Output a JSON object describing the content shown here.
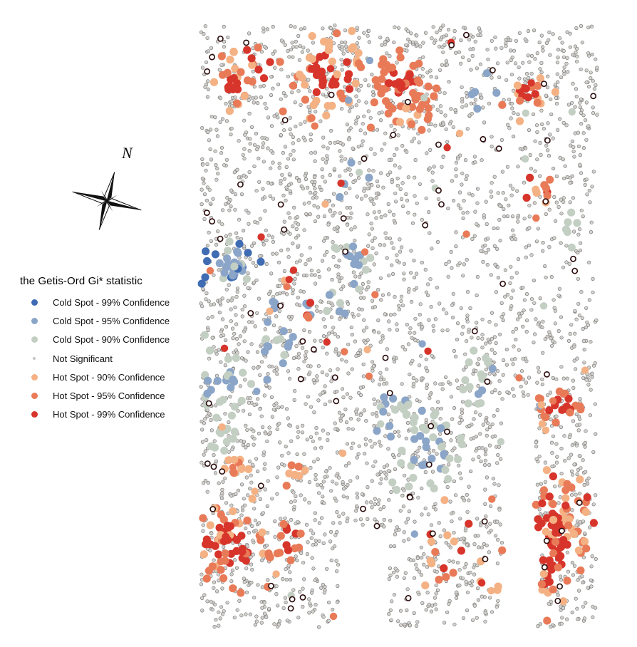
{
  "legend": {
    "title": "the Getis-Ord Gi* statistic",
    "items": [
      {
        "key": "cold99",
        "label": "Cold Spot - 99% Confidence",
        "color": "#3f6cb3"
      },
      {
        "key": "cold95",
        "label": "Cold Spot - 95% Confidence",
        "color": "#8aa5c8"
      },
      {
        "key": "cold90",
        "label": "Cold Spot - 90% Confidence",
        "color": "#c3cfc3"
      },
      {
        "key": "ns",
        "label": "Not Significant",
        "color": "#c8c6c3"
      },
      {
        "key": "hot90",
        "label": "Hot Spot - 90% Confidence",
        "color": "#f4b184"
      },
      {
        "key": "hot95",
        "label": "Hot Spot - 95% Confidence",
        "color": "#e97a58"
      },
      {
        "key": "hot99",
        "label": "Hot Spot - 99% Confidence",
        "color": "#d7352b"
      }
    ]
  },
  "north_arrow": {
    "label": "N",
    "icon": "compass-rose-icon"
  }
}
